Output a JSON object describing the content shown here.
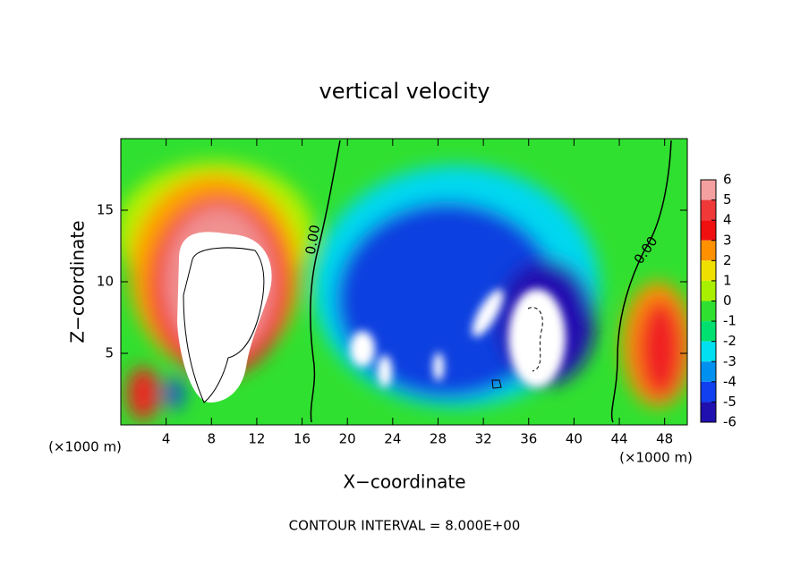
{
  "chart_data": {
    "type": "contour",
    "title": "vertical velocity",
    "x_label": "X−coordinate",
    "y_label": "Z−coordinate",
    "xlim": [
      0,
      50
    ],
    "ylim": [
      0,
      20
    ],
    "xticks": [
      4,
      8,
      12,
      16,
      20,
      24,
      28,
      32,
      36,
      40,
      44,
      48
    ],
    "yticks": [
      5,
      10,
      15
    ],
    "x_unit_labels": [
      "(×1000 m)",
      "(×1000 m)"
    ],
    "contour_labels": [
      "0.00",
      "0.00"
    ],
    "footer": "CONTOUR INTERVAL = 8.000E+00",
    "colorbar": {
      "ticks": [
        6,
        5,
        4,
        3,
        2,
        1,
        0,
        -1,
        -2,
        -3,
        -4,
        -5,
        -6
      ],
      "colors": [
        "#f4a0a0",
        "#f03838",
        "#f01010",
        "#ff9000",
        "#f0e000",
        "#a8f000",
        "#30e030",
        "#00e070",
        "#00e0f0",
        "#0090f0",
        "#1040f0",
        "#2010b0"
      ]
    }
  }
}
